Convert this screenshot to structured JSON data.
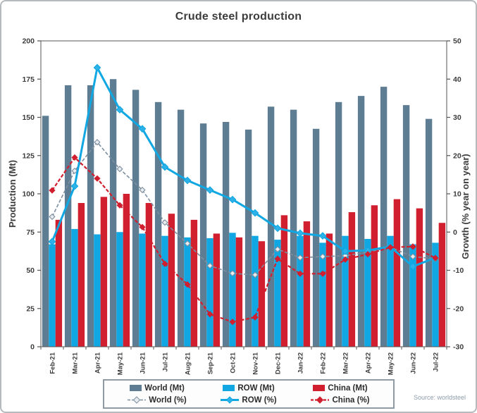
{
  "page": {
    "source_note": "Source: worldsteel"
  },
  "chart_data": {
    "type": "bar+line combo",
    "title": "Crude steel production",
    "grid": false,
    "legend_position": "bottom",
    "categories": [
      "Feb-21",
      "Mar-21",
      "Apr-21",
      "May-21",
      "Jun-21",
      "Jul-21",
      "Aug-21",
      "Sep-21",
      "Oct-21",
      "Nov-21",
      "Dec-21",
      "Jan-22",
      "Feb-22",
      "Mar-22",
      "Apr-22",
      "May-22",
      "Jun-22",
      "Jul-22"
    ],
    "left_axis": {
      "label": "Production (Mt)",
      "min": 0,
      "max": 200,
      "step": 25
    },
    "right_axis": {
      "label": "Growth (% year on year)",
      "min": -30,
      "max": 50,
      "step": 10
    },
    "bar_series": [
      {
        "name": "World (Mt)",
        "axis": "left",
        "color": "#5e7d92",
        "values": [
          151,
          171,
          171,
          175,
          168,
          160,
          155,
          146,
          147,
          142,
          157,
          155,
          142.5,
          160,
          164,
          170,
          158,
          149
        ]
      },
      {
        "name": "ROW (Mt)",
        "axis": "left",
        "color": "#10a7e2",
        "values": [
          67,
          77,
          73.5,
          75,
          74,
          72.5,
          71.5,
          71,
          74.5,
          72.5,
          70,
          72.5,
          68,
          72.5,
          70.5,
          72.5,
          67,
          68
        ]
      },
      {
        "name": "China (Mt)",
        "axis": "left",
        "color": "#d11f2f",
        "values": [
          83,
          94,
          98,
          100,
          94,
          87,
          83,
          74,
          71.5,
          69,
          86,
          82,
          74,
          88,
          92.5,
          96.5,
          90.5,
          81
        ]
      }
    ],
    "line_series": [
      {
        "name": "World (%)",
        "axis": "right",
        "color": "#7e8fa0",
        "marker_fill": "#e9edf0",
        "dashed": true,
        "width": 1.6,
        "values": [
          4,
          16,
          23.5,
          16.5,
          11,
          2.5,
          -3,
          -8.8,
          -10.8,
          -11.2,
          -4.5,
          -6.7,
          -6.4,
          -6.2,
          -5.2,
          -4,
          -6.4,
          -7
        ]
      },
      {
        "name": "ROW (%)",
        "axis": "right",
        "color": "#10a7e2",
        "marker_fill": "#2cb2e8",
        "dashed": false,
        "width": 3,
        "values": [
          -2.5,
          12,
          43,
          32,
          27,
          17,
          13.5,
          11,
          8.5,
          5,
          1,
          -0.3,
          -1,
          -5,
          -4.8,
          -3.8,
          -9,
          -6.7
        ]
      },
      {
        "name": "China (%)",
        "axis": "right",
        "color": "#d11f2f",
        "marker_fill": "#d11f2f",
        "dashed": true,
        "width": 2.2,
        "values": [
          10.9,
          19.5,
          14,
          7,
          1.3,
          -8.3,
          -13.7,
          -21.5,
          -23.5,
          -22.3,
          -7,
          -10.9,
          -10.9,
          -7.2,
          -5.8,
          -4,
          -3.8,
          -6.8
        ]
      }
    ]
  }
}
